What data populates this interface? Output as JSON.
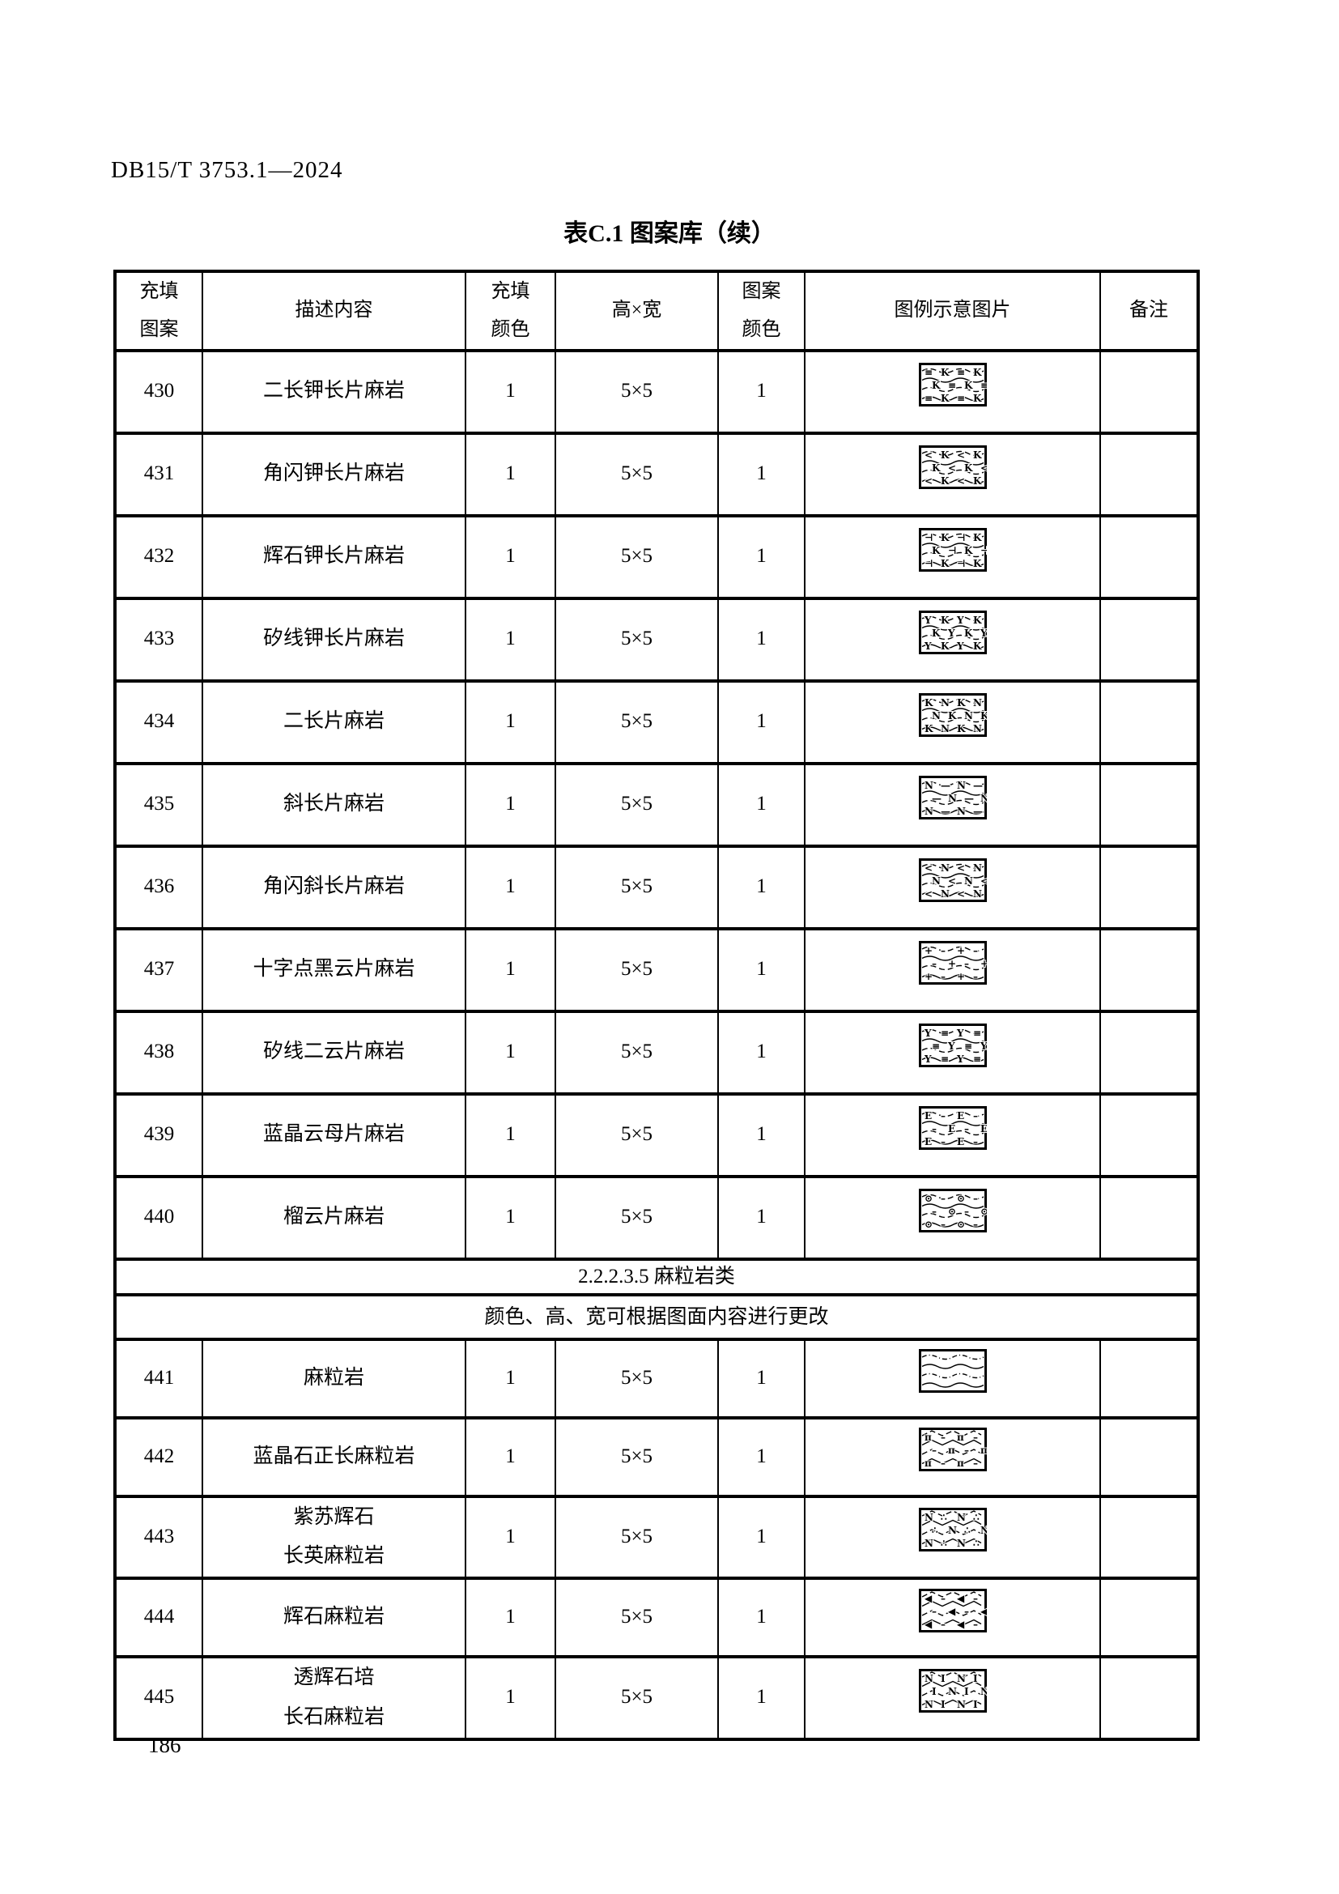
{
  "page": {
    "doc_code": "DB15/T 3753.1—2024",
    "table_title": "表C.1 图案库（续）",
    "page_number": "186"
  },
  "table": {
    "columns": [
      {
        "key": "fill_pattern",
        "label": "充填\n图案"
      },
      {
        "key": "description",
        "label": "描述内容"
      },
      {
        "key": "fill_color",
        "label": "充填\n颜色"
      },
      {
        "key": "size",
        "label": "高×宽"
      },
      {
        "key": "pattern_color",
        "label": "图案\n颜色"
      },
      {
        "key": "legend",
        "label": "图例示意图片"
      },
      {
        "key": "remark",
        "label": "备注"
      }
    ],
    "rows": [
      {
        "type": "data",
        "fill_pattern": "430",
        "description": "二长钾长片麻岩",
        "fill_color": "1",
        "size": "5×5",
        "pattern_color": "1",
        "remark": "",
        "legend": {
          "style": "wavy",
          "glyphs": [
            "≡",
            "K"
          ]
        }
      },
      {
        "type": "data",
        "fill_pattern": "431",
        "description": "角闪钾长片麻岩",
        "fill_color": "1",
        "size": "5×5",
        "pattern_color": "1",
        "remark": "",
        "legend": {
          "style": "wavy",
          "glyphs": [
            "<",
            "K"
          ]
        }
      },
      {
        "type": "data",
        "fill_pattern": "432",
        "description": "辉石钾长片麻岩",
        "fill_color": "1",
        "size": "5×5",
        "pattern_color": "1",
        "remark": "",
        "legend": {
          "style": "wavy",
          "glyphs": [
            "⊣",
            "K"
          ]
        }
      },
      {
        "type": "data",
        "fill_pattern": "433",
        "description": "矽线钾长片麻岩",
        "fill_color": "1",
        "size": "5×5",
        "pattern_color": "1",
        "remark": "",
        "legend": {
          "style": "wavy",
          "glyphs": [
            "Y",
            "K"
          ]
        }
      },
      {
        "type": "data",
        "fill_pattern": "434",
        "description": "二长片麻岩",
        "fill_color": "1",
        "size": "5×5",
        "pattern_color": "1",
        "remark": "",
        "legend": {
          "style": "wavy",
          "glyphs": [
            "K",
            "N"
          ]
        }
      },
      {
        "type": "data",
        "fill_pattern": "435",
        "description": "斜长片麻岩",
        "fill_color": "1",
        "size": "5×5",
        "pattern_color": "1",
        "remark": "",
        "legend": {
          "style": "wavy",
          "glyphs": [
            "N",
            "—"
          ]
        }
      },
      {
        "type": "data",
        "fill_pattern": "436",
        "description": "角闪斜长片麻岩",
        "fill_color": "1",
        "size": "5×5",
        "pattern_color": "1",
        "remark": "",
        "legend": {
          "style": "wavy",
          "glyphs": [
            "<",
            "N"
          ]
        }
      },
      {
        "type": "data",
        "fill_pattern": "437",
        "description": "十字点黑云片麻岩",
        "fill_color": "1",
        "size": "5×5",
        "pattern_color": "1",
        "remark": "",
        "legend": {
          "style": "wavy",
          "glyphs": [
            "+",
            "–"
          ]
        }
      },
      {
        "type": "data",
        "fill_pattern": "438",
        "description": "矽线二云片麻岩",
        "fill_color": "1",
        "size": "5×5",
        "pattern_color": "1",
        "remark": "",
        "legend": {
          "style": "wavy",
          "glyphs": [
            "Y",
            "≡"
          ]
        }
      },
      {
        "type": "data",
        "fill_pattern": "439",
        "description": "蓝晶云母片麻岩",
        "fill_color": "1",
        "size": "5×5",
        "pattern_color": "1",
        "remark": "",
        "legend": {
          "style": "wavy",
          "glyphs": [
            "E",
            "–"
          ]
        }
      },
      {
        "type": "data",
        "fill_pattern": "440",
        "description": "榴云片麻岩",
        "fill_color": "1",
        "size": "5×5",
        "pattern_color": "1",
        "remark": "",
        "legend": {
          "style": "wavy",
          "glyphs": [
            "⊙",
            "–"
          ]
        }
      },
      {
        "type": "section",
        "text": "2.2.2.3.5  麻粒岩类"
      },
      {
        "type": "section",
        "text": "颜色、高、宽可根据图面内容进行更改"
      },
      {
        "type": "data",
        "fill_pattern": "441",
        "description": "麻粒岩",
        "fill_color": "1",
        "size": "5×5",
        "pattern_color": "1",
        "remark": "",
        "legend": {
          "style": "wavy",
          "dash": "dashdot",
          "glyphs": []
        }
      },
      {
        "type": "data",
        "fill_pattern": "442",
        "description": "蓝晶石正长麻粒岩",
        "fill_color": "1",
        "size": "5×5",
        "pattern_color": "1",
        "remark": "",
        "legend": {
          "style": "zigzag",
          "glyphs": [
            "π",
            "–"
          ]
        }
      },
      {
        "type": "data",
        "fill_pattern": "443",
        "description": "紫苏辉石\n长英麻粒岩",
        "fill_color": "1",
        "size": "5×5",
        "pattern_color": "1",
        "remark": "",
        "legend": {
          "style": "zigzag",
          "glyphs": [
            "N",
            "∴"
          ]
        }
      },
      {
        "type": "data",
        "fill_pattern": "444",
        "description": "辉石麻粒岩",
        "fill_color": "1",
        "size": "5×5",
        "pattern_color": "1",
        "remark": "",
        "legend": {
          "style": "zigzag",
          "glyphs": [
            "◀",
            "–"
          ]
        }
      },
      {
        "type": "data",
        "fill_pattern": "445",
        "description": "透辉石培\n长石麻粒岩",
        "fill_color": "1",
        "size": "5×5",
        "pattern_color": "1",
        "remark": "",
        "legend": {
          "style": "zigzag",
          "glyphs": [
            "N",
            "I"
          ]
        }
      }
    ]
  },
  "colors": {
    "ink": "#000000",
    "paper": "#ffffff"
  }
}
